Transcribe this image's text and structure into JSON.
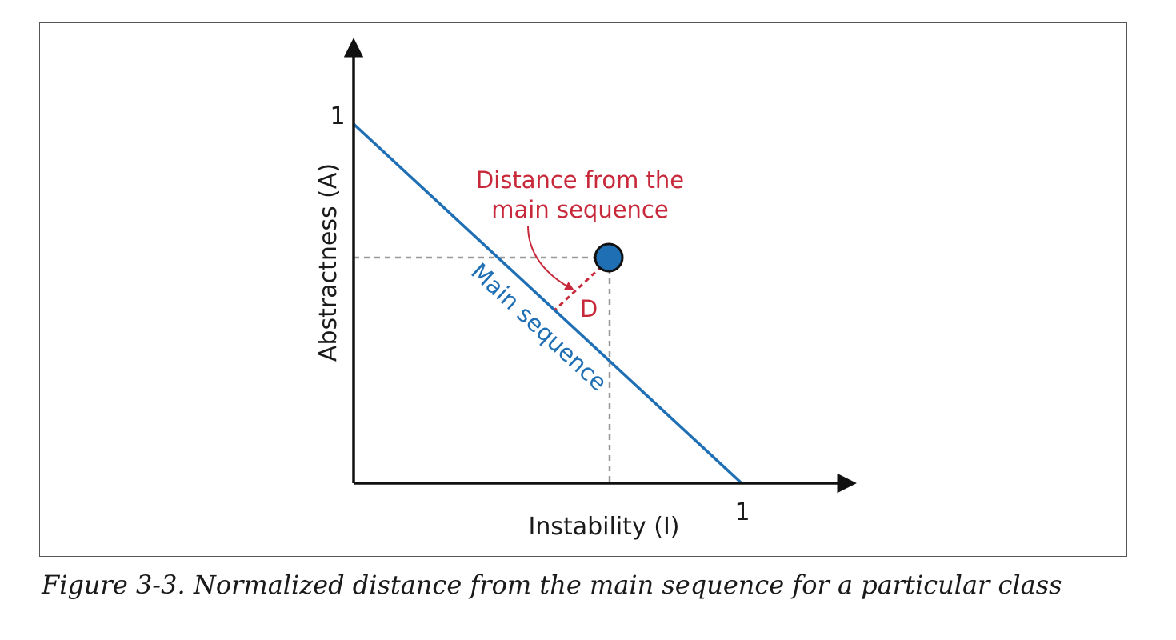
{
  "diagram": {
    "y_axis_label": "Abstractness (A)",
    "x_axis_label": "Instability (I)",
    "y_tick_label": "1",
    "x_tick_label": "1",
    "main_sequence_label": "Main sequence",
    "distance_label_line1": "Distance from the",
    "distance_label_line2": "main sequence",
    "d_label": "D",
    "colors": {
      "main_sequence": "#1f6fb5",
      "point_fill": "#1f6fb5",
      "annotation": "#c8293a",
      "guide": "#999999",
      "axis": "#111111"
    },
    "point": {
      "instability": 0.66,
      "abstractness": 0.63
    }
  },
  "caption": "Figure 3-3. Normalized distance from the main sequence for a particular class"
}
